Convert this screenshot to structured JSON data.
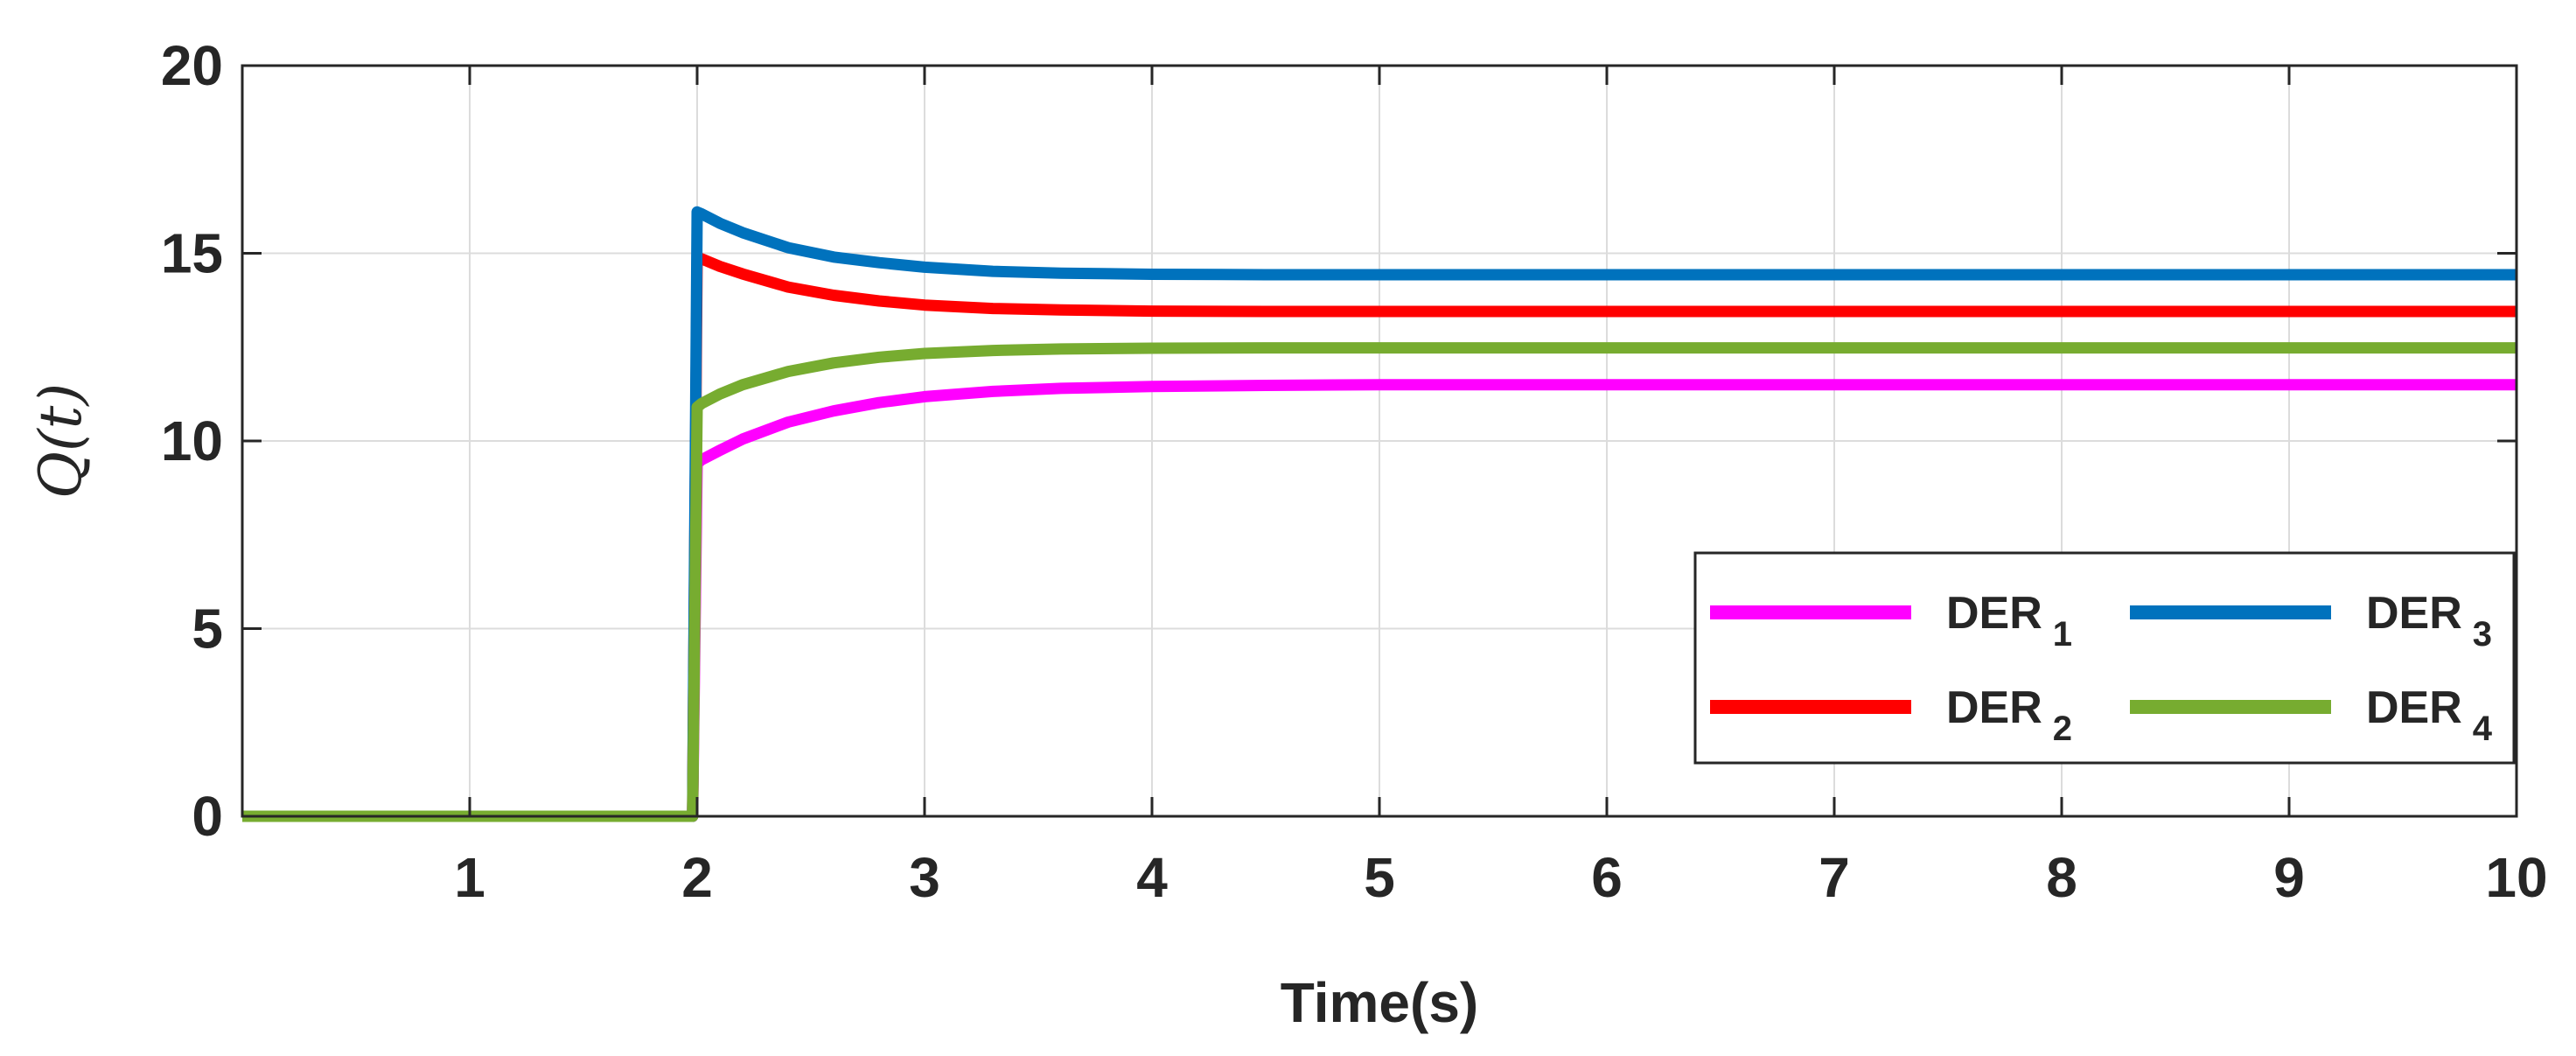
{
  "chart_data": {
    "type": "line",
    "xlabel": "Time(s)",
    "ylabel": "Q(t)",
    "xlim": [
      0,
      10
    ],
    "ylim": [
      0,
      20
    ],
    "xticks": [
      1,
      2,
      3,
      4,
      5,
      6,
      7,
      8,
      9,
      10
    ],
    "yticks": [
      0,
      5,
      10,
      15,
      20
    ],
    "grid": true,
    "legend_position": "lower-right",
    "legend_columns": 2,
    "x": [
      0,
      1.9,
      1.98,
      2.0,
      2.02,
      2.1,
      2.2,
      2.4,
      2.6,
      2.8,
      3.0,
      3.3,
      3.6,
      4.0,
      4.5,
      5.0,
      6.0,
      7.0,
      8.0,
      9.0,
      10.0
    ],
    "series": [
      {
        "name": "DER",
        "sub": "1",
        "color": "#FF00FF",
        "values": [
          0,
          0,
          0,
          9.4,
          9.5,
          9.75,
          10.05,
          10.5,
          10.8,
          11.02,
          11.18,
          11.32,
          11.4,
          11.45,
          11.48,
          11.5,
          11.5,
          11.5,
          11.5,
          11.5,
          11.5
        ]
      },
      {
        "name": "DER",
        "sub": "2",
        "color": "#FF0000",
        "values": [
          0,
          0,
          0,
          14.9,
          14.85,
          14.65,
          14.45,
          14.1,
          13.88,
          13.73,
          13.62,
          13.53,
          13.49,
          13.46,
          13.45,
          13.45,
          13.45,
          13.45,
          13.45,
          13.45,
          13.45
        ]
      },
      {
        "name": "DER",
        "sub": "3",
        "color": "#0072BD",
        "values": [
          0,
          0,
          0,
          16.1,
          16.05,
          15.8,
          15.55,
          15.15,
          14.9,
          14.75,
          14.63,
          14.52,
          14.47,
          14.44,
          14.43,
          14.43,
          14.43,
          14.43,
          14.43,
          14.43,
          14.43
        ]
      },
      {
        "name": "DER",
        "sub": "4",
        "color": "#77AC30",
        "values": [
          0,
          0,
          0,
          10.9,
          11.0,
          11.25,
          11.5,
          11.85,
          12.08,
          12.23,
          12.33,
          12.41,
          12.45,
          12.47,
          12.48,
          12.48,
          12.48,
          12.48,
          12.48,
          12.48,
          12.48
        ]
      }
    ]
  }
}
